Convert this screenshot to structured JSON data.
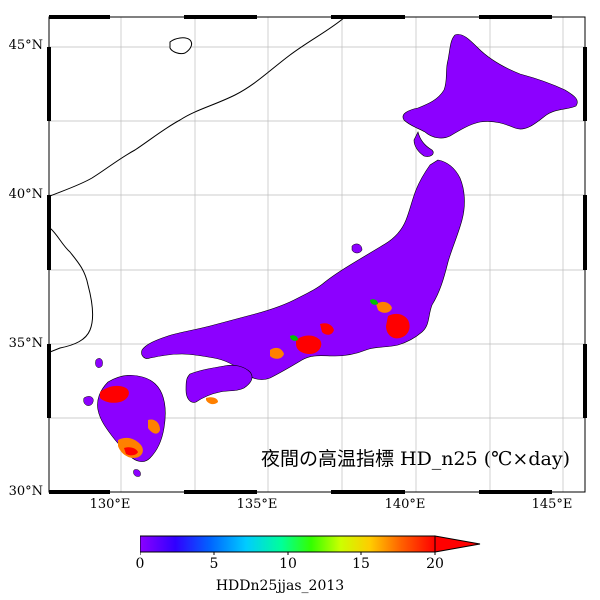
{
  "map": {
    "title": "夜間の高温指標 HD_n25 (℃×day)",
    "lat_labels": [
      {
        "value": 45,
        "text": "45°N"
      },
      {
        "value": 40,
        "text": "40°N"
      },
      {
        "value": 35,
        "text": "35°N"
      },
      {
        "value": 30,
        "text": "30°N"
      }
    ],
    "lon_labels": [
      {
        "value": 130,
        "text": "130°E"
      },
      {
        "value": 135,
        "text": "135°E"
      },
      {
        "value": 140,
        "text": "140°E"
      },
      {
        "value": 145,
        "text": "145°E"
      }
    ],
    "extent": {
      "lon_min": 128,
      "lon_max": 146.2,
      "lat_min": 30,
      "lat_max": 46.2
    },
    "land_fill_color": "#8c00ff",
    "hotspot_colors": [
      "#ff0000",
      "#ff8000",
      "#00c000",
      "#0040ff"
    ]
  },
  "colorbar": {
    "ticks": [
      "0",
      "5",
      "10",
      "15",
      "20"
    ],
    "min": 0,
    "max": 20,
    "title": "HDDn25jjas_2013",
    "colors": [
      "#8c00ff",
      "#3000ff",
      "#0066ff",
      "#00ccff",
      "#00ff99",
      "#33ff00",
      "#ccff00",
      "#ffcc00",
      "#ff6600",
      "#ff0000"
    ]
  }
}
